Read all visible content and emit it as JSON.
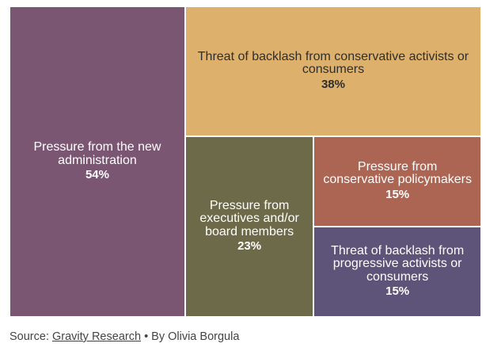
{
  "chart_data": {
    "type": "treemap",
    "categories": [
      "Pressure from the new administration",
      "Threat of backlash from conservative activists or consumers",
      "Pressure from executives and/or board members",
      "Pressure from conservative policymakers",
      "Threat of backlash from progressive activists or consumers"
    ],
    "values": [
      54,
      38,
      23,
      15,
      15
    ],
    "value_labels": [
      "54%",
      "38%",
      "23%",
      "15%",
      "15%"
    ],
    "colors": [
      "#7b5673",
      "#ddb16c",
      "#6d6a4a",
      "#ad6553",
      "#5e5378"
    ],
    "label_colors": [
      "#ffffff",
      "#2e2e2e",
      "#ffffff",
      "#ffffff",
      "#ffffff"
    ]
  },
  "footer": {
    "source_label": "Source:",
    "source_name": "Gravity Research",
    "credit": "• By Olivia Borgula"
  }
}
